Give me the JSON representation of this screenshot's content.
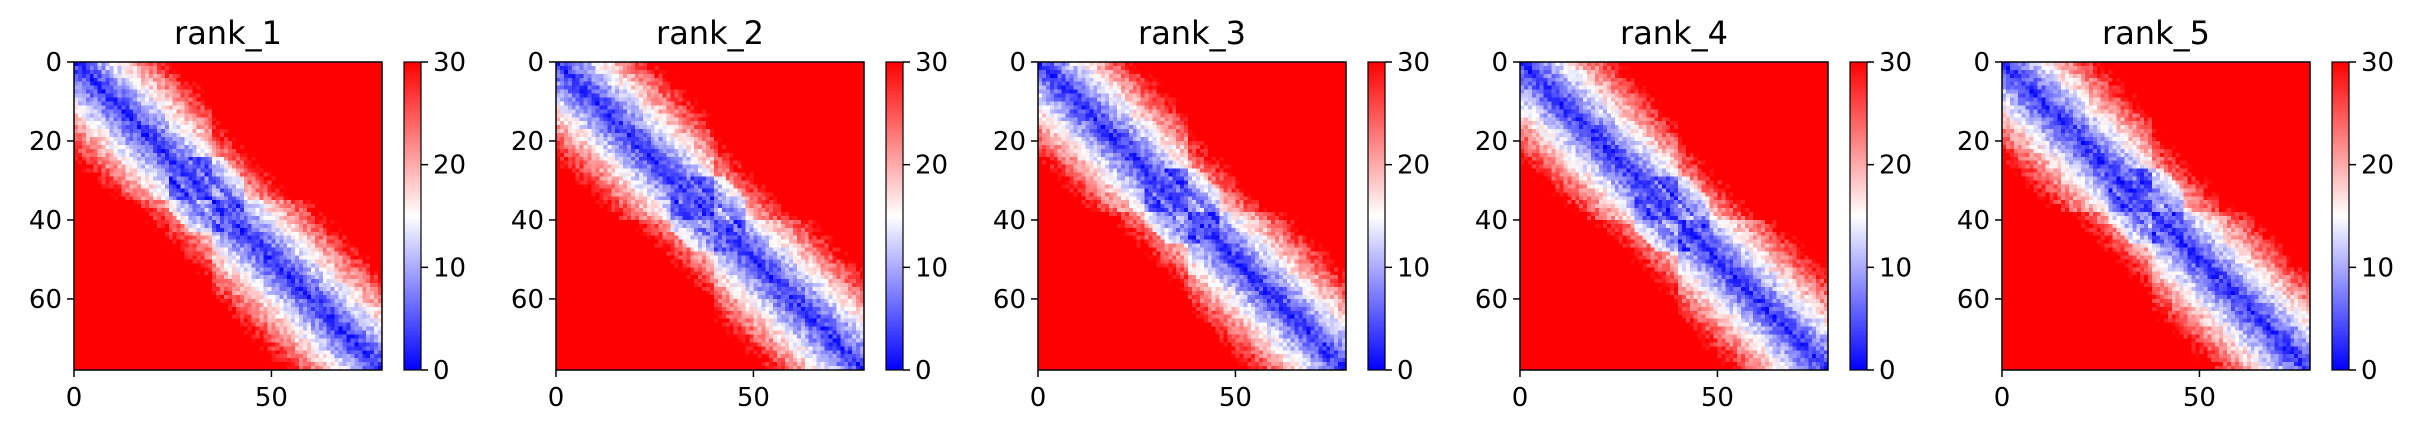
{
  "chart_data": [
    {
      "type": "heatmap",
      "title": "rank_1",
      "xlabel": "",
      "ylabel": "",
      "x_ticks": [
        "0",
        "50"
      ],
      "y_ticks": [
        "0",
        "20",
        "40",
        "60"
      ],
      "xlim": [
        0,
        78
      ],
      "ylim": [
        78,
        0
      ],
      "grid": false,
      "size": 78,
      "domain_split": 35,
      "colorbar": {
        "min": 0,
        "max": 30,
        "ticks": [
          "0",
          "10",
          "20",
          "30"
        ],
        "colors": [
          "#0000ff",
          "#ffffff",
          "#ff0000"
        ]
      }
    },
    {
      "type": "heatmap",
      "title": "rank_2",
      "xlabel": "",
      "ylabel": "",
      "x_ticks": [
        "0",
        "50"
      ],
      "y_ticks": [
        "0",
        "20",
        "40",
        "60"
      ],
      "xlim": [
        0,
        78
      ],
      "ylim": [
        78,
        0
      ],
      "grid": false,
      "size": 78,
      "domain_split": 40,
      "colorbar": {
        "min": 0,
        "max": 30,
        "ticks": [
          "0",
          "10",
          "20",
          "30"
        ],
        "colors": [
          "#0000ff",
          "#ffffff",
          "#ff0000"
        ]
      }
    },
    {
      "type": "heatmap",
      "title": "rank_3",
      "xlabel": "",
      "ylabel": "",
      "x_ticks": [
        "0",
        "50"
      ],
      "y_ticks": [
        "0",
        "20",
        "40",
        "60"
      ],
      "xlim": [
        0,
        78
      ],
      "ylim": [
        78,
        0
      ],
      "grid": false,
      "size": 78,
      "domain_split": 38,
      "colorbar": {
        "min": 0,
        "max": 30,
        "ticks": [
          "0",
          "10",
          "20",
          "30"
        ],
        "colors": [
          "#0000ff",
          "#ffffff",
          "#ff0000"
        ]
      }
    },
    {
      "type": "heatmap",
      "title": "rank_4",
      "xlabel": "",
      "ylabel": "",
      "x_ticks": [
        "0",
        "50"
      ],
      "y_ticks": [
        "0",
        "20",
        "40",
        "60"
      ],
      "xlim": [
        0,
        78
      ],
      "ylim": [
        78,
        0
      ],
      "grid": false,
      "size": 78,
      "domain_split": 40,
      "colorbar": {
        "min": 0,
        "max": 30,
        "ticks": [
          "0",
          "10",
          "20",
          "30"
        ],
        "colors": [
          "#0000ff",
          "#ffffff",
          "#ff0000"
        ]
      }
    },
    {
      "type": "heatmap",
      "title": "rank_5",
      "xlabel": "",
      "ylabel": "",
      "x_ticks": [
        "0",
        "50"
      ],
      "y_ticks": [
        "0",
        "20",
        "40",
        "60"
      ],
      "xlim": [
        0,
        78
      ],
      "ylim": [
        78,
        0
      ],
      "grid": false,
      "size": 78,
      "domain_split": 38,
      "colorbar": {
        "min": 0,
        "max": 30,
        "ticks": [
          "0",
          "10",
          "20",
          "30"
        ],
        "colors": [
          "#0000ff",
          "#ffffff",
          "#ff0000"
        ]
      }
    }
  ]
}
